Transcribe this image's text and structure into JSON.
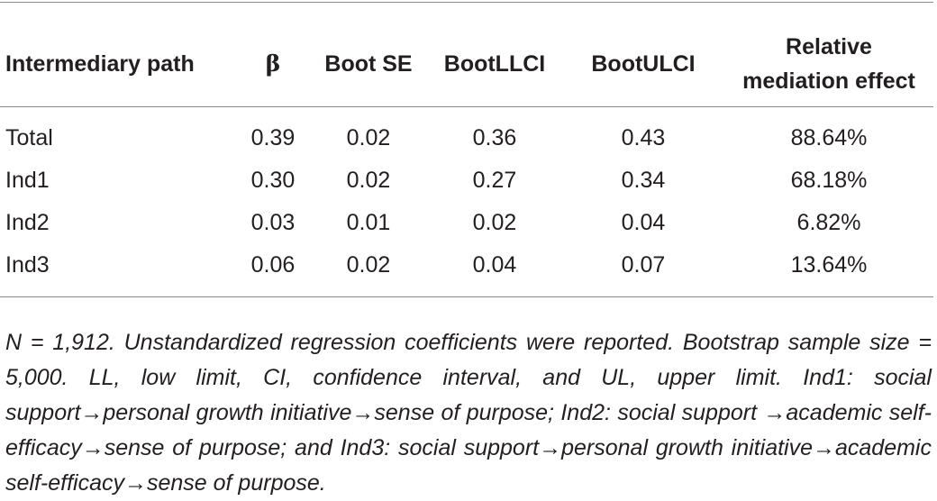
{
  "table": {
    "headers": {
      "path": "Intermediary path",
      "beta": "β",
      "boot_se": "Boot SE",
      "boot_llci": "BootLLCI",
      "boot_ulci": "BootULCI",
      "relative_line1": "Relative",
      "relative_line2": "mediation effect"
    },
    "rows": [
      {
        "path": "Total",
        "beta": "0.39",
        "boot_se": "0.02",
        "boot_llci": "0.36",
        "boot_ulci": "0.43",
        "relative": "88.64%"
      },
      {
        "path": "Ind1",
        "beta": "0.30",
        "boot_se": "0.02",
        "boot_llci": "0.27",
        "boot_ulci": "0.34",
        "relative": "68.18%"
      },
      {
        "path": "Ind2",
        "beta": "0.03",
        "boot_se": "0.01",
        "boot_llci": "0.02",
        "boot_ulci": "0.04",
        "relative": "6.82%"
      },
      {
        "path": "Ind3",
        "beta": "0.06",
        "boot_se": "0.02",
        "boot_llci": "0.04",
        "boot_ulci": "0.07",
        "relative": "13.64%"
      }
    ]
  },
  "note": "N = 1,912. Unstandardized regression coefficients were reported. Bootstrap sample size = 5,000. LL, low limit, CI, confidence interval, and UL, upper limit. Ind1: social support→personal growth initiative→sense of purpose; Ind2: social support →academic self-efficacy→sense of purpose; and Ind3: social support→personal growth initiative→academic self-efficacy→sense of purpose."
}
